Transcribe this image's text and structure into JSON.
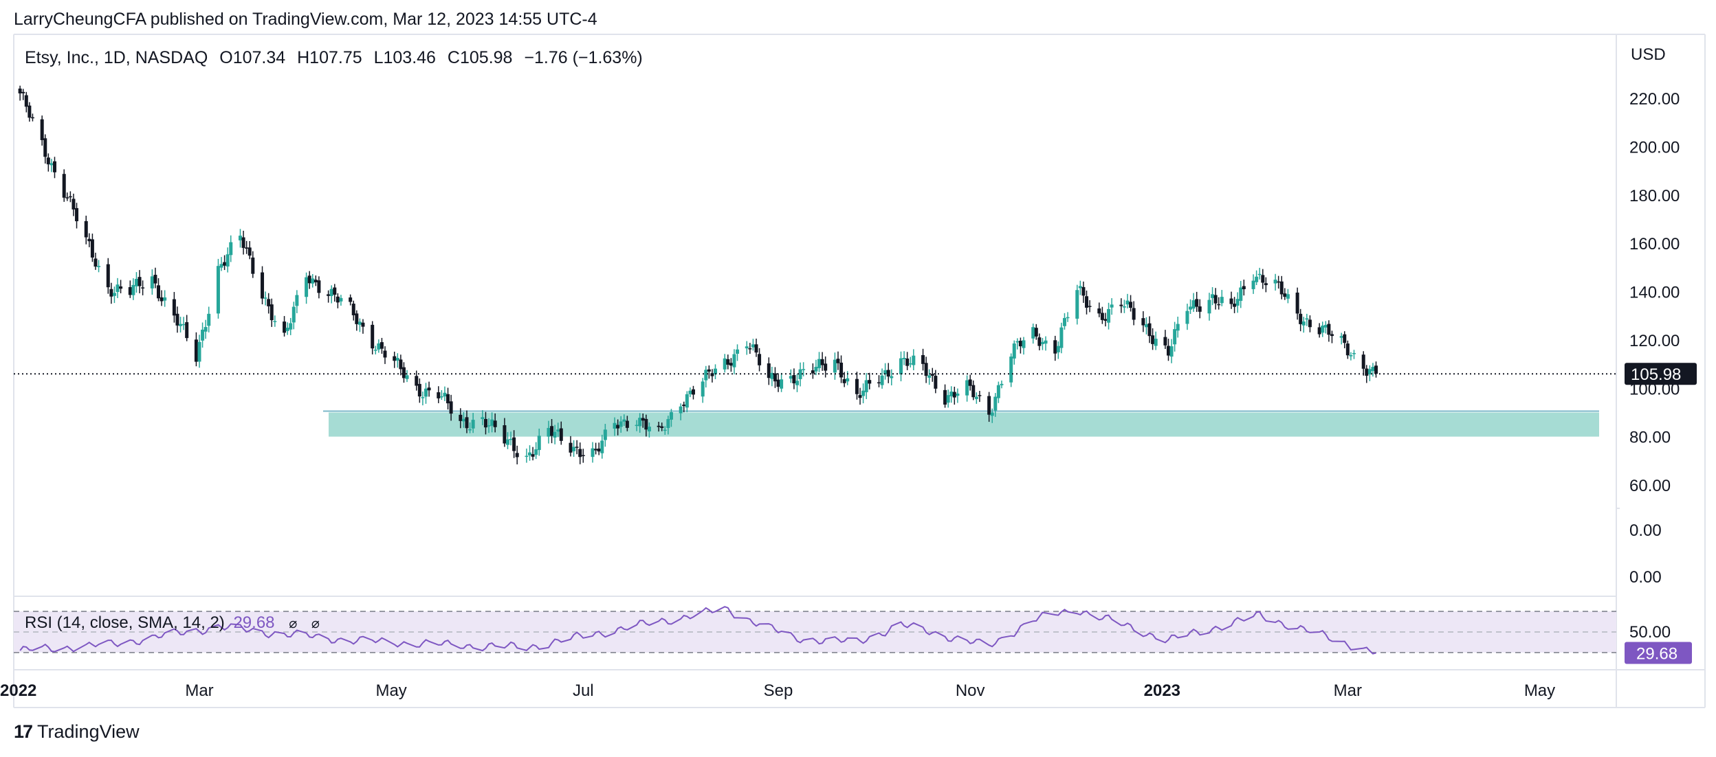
{
  "header": {
    "publisher": "LarryCheungCFA published on TradingView.com, Mar 12, 2023 14:55 UTC-4"
  },
  "legend": {
    "symbol": "Etsy, Inc., 1D, NASDAQ",
    "open_label": "O",
    "open": "107.34",
    "high_label": "H",
    "high": "107.75",
    "low_label": "L",
    "low": "103.46",
    "close_label": "C",
    "close": "105.98",
    "change": "−1.76 (−1.63%)"
  },
  "price_axis": {
    "currency": "USD",
    "last_price_label": "105.98"
  },
  "rsi": {
    "title": "RSI (14, close, SMA, 14, 2)",
    "value": "29.68",
    "icon_1": "⌀",
    "icon_2": "⌀"
  },
  "brand": {
    "name": "TradingView"
  },
  "colors": {
    "up": "#26a69a",
    "down": "#131722",
    "support_zone": "#a6dcd4",
    "rsi_line": "#7e57c2",
    "rsi_band": "#ede7f6",
    "last_price_bg": "#131722",
    "rsi_badge_bg": "#7e57c2"
  },
  "chart_data": [
    {
      "type": "candlestick",
      "title": "Etsy, Inc., 1D, NASDAQ",
      "ylim": [
        50,
        230
      ],
      "y_ticks": [
        220,
        200,
        180,
        160,
        140,
        120,
        100,
        80,
        60
      ],
      "y_tick_labels": [
        "220.00",
        "200.00",
        "180.00",
        "160.00",
        "140.00",
        "120.00",
        "100.00",
        "80.00",
        "60.00"
      ],
      "extra_axis_labels": [
        "0.00",
        "0.00"
      ],
      "x_ticks": [
        "2022",
        "Mar",
        "May",
        "Jul",
        "Sep",
        "Nov",
        "2023",
        "Mar",
        "May"
      ],
      "last_price": 105.98,
      "support_zone": {
        "from": "Apr 2022",
        "to": "Apr 2023",
        "low": 80,
        "high": 90
      },
      "approx_close_path": [
        {
          "date": "2022-01-03",
          "close": 222
        },
        {
          "date": "2022-01-10",
          "close": 200
        },
        {
          "date": "2022-01-18",
          "close": 180
        },
        {
          "date": "2022-01-24",
          "close": 160
        },
        {
          "date": "2022-01-31",
          "close": 142
        },
        {
          "date": "2022-02-07",
          "close": 140
        },
        {
          "date": "2022-02-14",
          "close": 145
        },
        {
          "date": "2022-02-22",
          "close": 128
        },
        {
          "date": "2022-02-28",
          "close": 112
        },
        {
          "date": "2022-03-07",
          "close": 150
        },
        {
          "date": "2022-03-14",
          "close": 162
        },
        {
          "date": "2022-03-21",
          "close": 140
        },
        {
          "date": "2022-03-28",
          "close": 120
        },
        {
          "date": "2022-04-04",
          "close": 147
        },
        {
          "date": "2022-04-11",
          "close": 140
        },
        {
          "date": "2022-04-18",
          "close": 132
        },
        {
          "date": "2022-04-25",
          "close": 120
        },
        {
          "date": "2022-05-02",
          "close": 110
        },
        {
          "date": "2022-05-09",
          "close": 100
        },
        {
          "date": "2022-05-16",
          "close": 98
        },
        {
          "date": "2022-05-23",
          "close": 85
        },
        {
          "date": "2022-05-30",
          "close": 88
        },
        {
          "date": "2022-06-06",
          "close": 78
        },
        {
          "date": "2022-06-13",
          "close": 72
        },
        {
          "date": "2022-06-20",
          "close": 82
        },
        {
          "date": "2022-06-27",
          "close": 76
        },
        {
          "date": "2022-07-05",
          "close": 73
        },
        {
          "date": "2022-07-11",
          "close": 85
        },
        {
          "date": "2022-07-18",
          "close": 88
        },
        {
          "date": "2022-07-25",
          "close": 80
        },
        {
          "date": "2022-08-01",
          "close": 95
        },
        {
          "date": "2022-08-08",
          "close": 103
        },
        {
          "date": "2022-08-15",
          "close": 110
        },
        {
          "date": "2022-08-22",
          "close": 120
        },
        {
          "date": "2022-08-29",
          "close": 103
        },
        {
          "date": "2022-09-06",
          "close": 105
        },
        {
          "date": "2022-09-12",
          "close": 107
        },
        {
          "date": "2022-09-19",
          "close": 112
        },
        {
          "date": "2022-09-26",
          "close": 96
        },
        {
          "date": "2022-10-03",
          "close": 104
        },
        {
          "date": "2022-10-10",
          "close": 112
        },
        {
          "date": "2022-10-17",
          "close": 108
        },
        {
          "date": "2022-10-24",
          "close": 97
        },
        {
          "date": "2022-10-31",
          "close": 100
        },
        {
          "date": "2022-11-07",
          "close": 90
        },
        {
          "date": "2022-11-14",
          "close": 115
        },
        {
          "date": "2022-11-21",
          "close": 122
        },
        {
          "date": "2022-11-28",
          "close": 117
        },
        {
          "date": "2022-12-05",
          "close": 140
        },
        {
          "date": "2022-12-12",
          "close": 130
        },
        {
          "date": "2022-12-19",
          "close": 135
        },
        {
          "date": "2022-12-27",
          "close": 125
        },
        {
          "date": "2023-01-03",
          "close": 115
        },
        {
          "date": "2023-01-09",
          "close": 133
        },
        {
          "date": "2023-01-17",
          "close": 138
        },
        {
          "date": "2023-01-23",
          "close": 132
        },
        {
          "date": "2023-01-30",
          "close": 148
        },
        {
          "date": "2023-02-06",
          "close": 143
        },
        {
          "date": "2023-02-13",
          "close": 130
        },
        {
          "date": "2023-02-21",
          "close": 125
        },
        {
          "date": "2023-02-27",
          "close": 118
        },
        {
          "date": "2023-03-06",
          "close": 110
        },
        {
          "date": "2023-03-10",
          "close": 105.98
        }
      ]
    },
    {
      "type": "line",
      "title": "RSI (14, close, SMA, 14, 2)",
      "ylim": [
        20,
        80
      ],
      "y_tick_labels": [
        "50.00"
      ],
      "band": [
        30,
        70
      ],
      "last_value": 29.68,
      "approx_path": [
        {
          "date": "2022-01-03",
          "rsi": 32
        },
        {
          "date": "2022-02-01",
          "rsi": 38
        },
        {
          "date": "2022-03-07",
          "rsi": 55
        },
        {
          "date": "2022-03-21",
          "rsi": 50
        },
        {
          "date": "2022-04-18",
          "rsi": 42
        },
        {
          "date": "2022-05-16",
          "rsi": 38
        },
        {
          "date": "2022-06-13",
          "rsi": 35
        },
        {
          "date": "2022-07-11",
          "rsi": 52
        },
        {
          "date": "2022-08-15",
          "rsi": 72
        },
        {
          "date": "2022-09-06",
          "rsi": 44
        },
        {
          "date": "2022-09-26",
          "rsi": 40
        },
        {
          "date": "2022-10-10",
          "rsi": 57
        },
        {
          "date": "2022-11-07",
          "rsi": 36
        },
        {
          "date": "2022-11-21",
          "rsi": 62
        },
        {
          "date": "2022-12-05",
          "rsi": 72
        },
        {
          "date": "2023-01-03",
          "rsi": 42
        },
        {
          "date": "2023-02-01",
          "rsi": 66
        },
        {
          "date": "2023-03-10",
          "rsi": 29.68
        }
      ]
    }
  ]
}
